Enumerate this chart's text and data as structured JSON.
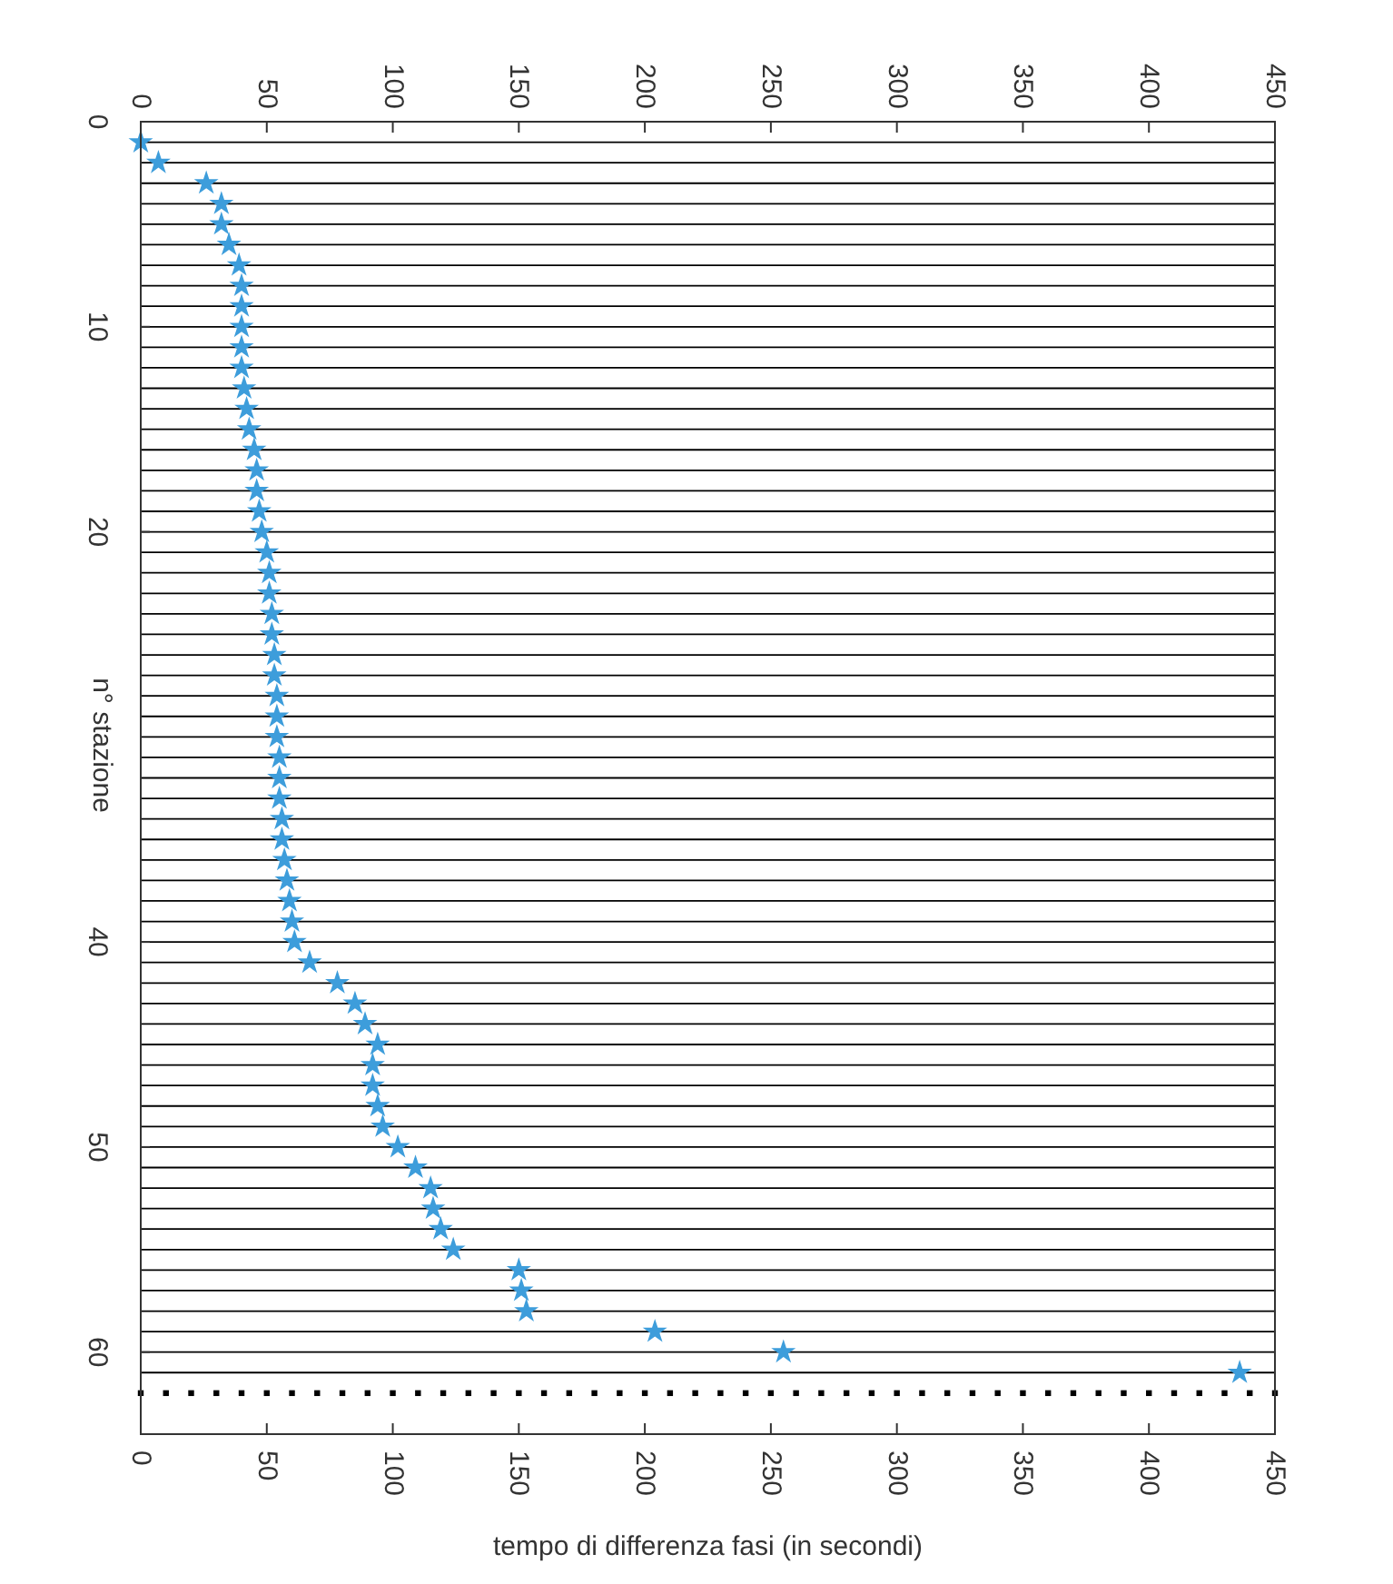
{
  "chart_data": {
    "type": "scatter",
    "xlabel": "tempo di differenza fasi (in secondi)",
    "ylabel": "n° stazione",
    "xlim": [
      0,
      450
    ],
    "xticks": [
      0,
      50,
      100,
      150,
      200,
      250,
      300,
      350,
      400,
      450
    ],
    "x2lim": [
      0,
      450
    ],
    "x2ticks": [
      0,
      50,
      100,
      150,
      200,
      250,
      300,
      350,
      400,
      450
    ],
    "ylim": [
      64,
      0
    ],
    "yticks": [
      0,
      10,
      20,
      40,
      50,
      60
    ],
    "series": [
      {
        "type": "line",
        "color": "#000000",
        "x": [
          0,
          450
        ],
        "values": [
          1,
          1
        ]
      },
      {
        "type": "line",
        "color": "#000000",
        "x": [
          0,
          450
        ],
        "values": [
          2,
          2
        ]
      },
      {
        "type": "line",
        "color": "#000000",
        "x": [
          0,
          450
        ],
        "values": [
          3,
          3
        ]
      },
      {
        "type": "line",
        "color": "#000000",
        "x": [
          0,
          450
        ],
        "values": [
          4,
          4
        ]
      },
      {
        "type": "line",
        "color": "#000000",
        "x": [
          0,
          450
        ],
        "values": [
          5,
          5
        ]
      },
      {
        "type": "line",
        "color": "#000000",
        "x": [
          0,
          450
        ],
        "values": [
          6,
          6
        ]
      },
      {
        "type": "line",
        "color": "#000000",
        "x": [
          0,
          450
        ],
        "values": [
          7,
          7
        ]
      },
      {
        "type": "line",
        "color": "#000000",
        "x": [
          0,
          450
        ],
        "values": [
          8,
          8
        ]
      },
      {
        "type": "line",
        "color": "#000000",
        "x": [
          0,
          450
        ],
        "values": [
          9,
          9
        ]
      },
      {
        "type": "line",
        "color": "#000000",
        "x": [
          0,
          450
        ],
        "values": [
          10,
          10
        ]
      },
      {
        "type": "line",
        "color": "#000000",
        "x": [
          0,
          450
        ],
        "values": [
          11,
          11
        ]
      },
      {
        "type": "line",
        "color": "#000000",
        "x": [
          0,
          450
        ],
        "values": [
          12,
          12
        ]
      },
      {
        "type": "line",
        "color": "#000000",
        "x": [
          0,
          450
        ],
        "values": [
          13,
          13
        ]
      },
      {
        "type": "line",
        "color": "#000000",
        "x": [
          0,
          450
        ],
        "values": [
          14,
          14
        ]
      },
      {
        "type": "line",
        "color": "#000000",
        "x": [
          0,
          450
        ],
        "values": [
          15,
          15
        ]
      },
      {
        "type": "line",
        "color": "#000000",
        "x": [
          0,
          450
        ],
        "values": [
          16,
          16
        ]
      },
      {
        "type": "line",
        "color": "#000000",
        "x": [
          0,
          450
        ],
        "values": [
          17,
          17
        ]
      },
      {
        "type": "line",
        "color": "#000000",
        "x": [
          0,
          450
        ],
        "values": [
          18,
          18
        ]
      },
      {
        "type": "line",
        "color": "#000000",
        "x": [
          0,
          450
        ],
        "values": [
          19,
          19
        ]
      },
      {
        "type": "line",
        "color": "#000000",
        "x": [
          0,
          450
        ],
        "values": [
          20,
          20
        ]
      },
      {
        "type": "line",
        "color": "#000000",
        "x": [
          0,
          450
        ],
        "values": [
          21,
          21
        ]
      },
      {
        "type": "line",
        "color": "#000000",
        "x": [
          0,
          450
        ],
        "values": [
          22,
          22
        ]
      },
      {
        "type": "line",
        "color": "#000000",
        "x": [
          0,
          450
        ],
        "values": [
          23,
          23
        ]
      },
      {
        "type": "line",
        "color": "#000000",
        "x": [
          0,
          450
        ],
        "values": [
          24,
          24
        ]
      },
      {
        "type": "line",
        "color": "#000000",
        "x": [
          0,
          450
        ],
        "values": [
          25,
          25
        ]
      },
      {
        "type": "line",
        "color": "#000000",
        "x": [
          0,
          450
        ],
        "values": [
          26,
          26
        ]
      },
      {
        "type": "line",
        "color": "#000000",
        "x": [
          0,
          450
        ],
        "values": [
          27,
          27
        ]
      },
      {
        "type": "line",
        "color": "#000000",
        "x": [
          0,
          450
        ],
        "values": [
          28,
          28
        ]
      },
      {
        "type": "line",
        "color": "#000000",
        "x": [
          0,
          450
        ],
        "values": [
          29,
          29
        ]
      },
      {
        "type": "line",
        "color": "#000000",
        "x": [
          0,
          450
        ],
        "values": [
          30,
          30
        ]
      },
      {
        "type": "line",
        "color": "#000000",
        "x": [
          0,
          450
        ],
        "values": [
          31,
          31
        ]
      },
      {
        "type": "line",
        "color": "#000000",
        "x": [
          0,
          450
        ],
        "values": [
          32,
          32
        ]
      },
      {
        "type": "line",
        "color": "#000000",
        "x": [
          0,
          450
        ],
        "values": [
          33,
          33
        ]
      },
      {
        "type": "line",
        "color": "#000000",
        "x": [
          0,
          450
        ],
        "values": [
          34,
          34
        ]
      },
      {
        "type": "line",
        "color": "#000000",
        "x": [
          0,
          450
        ],
        "values": [
          35,
          35
        ]
      },
      {
        "type": "line",
        "color": "#000000",
        "x": [
          0,
          450
        ],
        "values": [
          36,
          36
        ]
      },
      {
        "type": "line",
        "color": "#000000",
        "x": [
          0,
          450
        ],
        "values": [
          37,
          37
        ]
      },
      {
        "type": "line",
        "color": "#000000",
        "x": [
          0,
          450
        ],
        "values": [
          38,
          38
        ]
      },
      {
        "type": "line",
        "color": "#000000",
        "x": [
          0,
          450
        ],
        "values": [
          39,
          39
        ]
      },
      {
        "type": "line",
        "color": "#000000",
        "x": [
          0,
          450
        ],
        "values": [
          40,
          40
        ]
      },
      {
        "type": "line",
        "color": "#000000",
        "x": [
          0,
          450
        ],
        "values": [
          41,
          41
        ]
      },
      {
        "type": "line",
        "color": "#000000",
        "x": [
          0,
          450
        ],
        "values": [
          42,
          42
        ]
      },
      {
        "type": "line",
        "color": "#000000",
        "x": [
          0,
          450
        ],
        "values": [
          43,
          43
        ]
      },
      {
        "type": "line",
        "color": "#000000",
        "x": [
          0,
          450
        ],
        "values": [
          44,
          44
        ]
      },
      {
        "type": "line",
        "color": "#000000",
        "x": [
          0,
          450
        ],
        "values": [
          45,
          45
        ]
      },
      {
        "type": "line",
        "color": "#000000",
        "x": [
          0,
          450
        ],
        "values": [
          46,
          46
        ]
      },
      {
        "type": "line",
        "color": "#000000",
        "x": [
          0,
          450
        ],
        "values": [
          47,
          47
        ]
      },
      {
        "type": "line",
        "color": "#000000",
        "x": [
          0,
          450
        ],
        "values": [
          48,
          48
        ]
      },
      {
        "type": "line",
        "color": "#000000",
        "x": [
          0,
          450
        ],
        "values": [
          49,
          49
        ]
      },
      {
        "type": "line",
        "color": "#000000",
        "x": [
          0,
          450
        ],
        "values": [
          50,
          50
        ]
      },
      {
        "type": "line",
        "color": "#000000",
        "x": [
          0,
          450
        ],
        "values": [
          51,
          51
        ]
      },
      {
        "type": "line",
        "color": "#000000",
        "x": [
          0,
          450
        ],
        "values": [
          52,
          52
        ]
      },
      {
        "type": "line",
        "color": "#000000",
        "x": [
          0,
          450
        ],
        "values": [
          53,
          53
        ]
      },
      {
        "type": "line",
        "color": "#000000",
        "x": [
          0,
          450
        ],
        "values": [
          54,
          54
        ]
      },
      {
        "type": "line",
        "color": "#000000",
        "x": [
          0,
          450
        ],
        "values": [
          55,
          55
        ]
      },
      {
        "type": "line",
        "color": "#000000",
        "x": [
          0,
          450
        ],
        "values": [
          56,
          56
        ]
      },
      {
        "type": "line",
        "color": "#000000",
        "x": [
          0,
          450
        ],
        "values": [
          57,
          57
        ]
      },
      {
        "type": "line",
        "color": "#000000",
        "x": [
          0,
          450
        ],
        "values": [
          58,
          58
        ]
      },
      {
        "type": "line",
        "color": "#000000",
        "x": [
          0,
          450
        ],
        "values": [
          59,
          59
        ]
      },
      {
        "type": "line",
        "color": "#000000",
        "x": [
          0,
          450
        ],
        "values": [
          60,
          60
        ]
      },
      {
        "type": "line",
        "color": "#000000",
        "x": [
          0,
          450
        ],
        "values": [
          61,
          61
        ]
      },
      {
        "color": "#000000",
        "marker": "square",
        "x": [
          0,
          10,
          20,
          30,
          40,
          50,
          60,
          70,
          80,
          90,
          100,
          110,
          120,
          130,
          140,
          150,
          160,
          170,
          180,
          190,
          200,
          210,
          220,
          230,
          240,
          250,
          260,
          270,
          280,
          290,
          300,
          310,
          320,
          330,
          340,
          350,
          360,
          370,
          380,
          390,
          400,
          410,
          420,
          430,
          440,
          450
        ],
        "values": [
          62,
          62,
          62,
          62,
          62,
          62,
          62,
          62,
          62,
          62,
          62,
          62,
          62,
          62,
          62,
          62,
          62,
          62,
          62,
          62,
          62,
          62,
          62,
          62,
          62,
          62,
          62,
          62,
          62,
          62,
          62,
          62,
          62,
          62,
          62,
          62,
          62,
          62,
          62,
          62,
          62,
          62,
          62,
          62,
          62,
          62
        ]
      },
      {
        "color": "#3d9ddb",
        "marker": "star",
        "x": [
          0,
          7,
          26,
          32,
          32,
          35,
          39,
          40,
          40,
          40,
          40,
          40,
          41,
          42,
          43,
          45,
          46,
          46,
          47,
          48,
          50,
          51,
          51,
          52,
          52,
          53,
          53,
          54,
          54,
          54,
          55,
          55,
          55,
          56,
          56,
          57,
          58,
          59,
          60,
          61,
          67,
          78,
          85,
          89,
          94,
          92,
          92,
          94,
          96,
          102,
          109,
          115,
          116,
          119,
          124,
          150,
          151,
          153,
          204,
          255,
          436
        ],
        "values": [
          1,
          2,
          3,
          4,
          5,
          6,
          7,
          8,
          9,
          10,
          11,
          12,
          13,
          14,
          15,
          16,
          17,
          18,
          19,
          20,
          21,
          22,
          23,
          24,
          25,
          26,
          27,
          28,
          29,
          30,
          31,
          32,
          33,
          34,
          35,
          36,
          37,
          38,
          39,
          40,
          41,
          42,
          43,
          44,
          45,
          46,
          47,
          48,
          49,
          50,
          51,
          52,
          53,
          54,
          55,
          56,
          57,
          58,
          59,
          60,
          61
        ]
      }
    ]
  }
}
